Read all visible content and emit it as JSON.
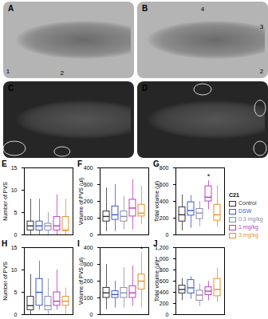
{
  "image_panels": [
    {
      "label": "A",
      "markers": [
        "1",
        "2"
      ]
    },
    {
      "label": "B",
      "markers": [
        "4",
        "3",
        "2"
      ]
    },
    {
      "label": "C",
      "markers": []
    },
    {
      "label": "D",
      "markers": []
    }
  ],
  "legend_title": "C21",
  "chart_data": [
    {
      "type": "box",
      "title": "E",
      "y_label": "Number of PVS",
      "categories": [
        "Control",
        "DSW",
        "0.3 mg/kg",
        "1 mg/kg",
        "3 mg/kg"
      ],
      "colors": [
        "#333333",
        "#3b5bdb",
        "#8c8ca8",
        "#c03cc0",
        "#e8902a"
      ],
      "boxes": [
        {
          "min": 0,
          "q1": 1,
          "median": 2,
          "q3": 3,
          "max": 8
        },
        {
          "min": 0,
          "q1": 1,
          "median": 2,
          "q3": 3,
          "max": 8
        },
        {
          "min": 0,
          "q1": 1,
          "median": 2,
          "q3": 2.5,
          "max": 5
        },
        {
          "min": 0,
          "q1": 1,
          "median": 2,
          "q3": 4,
          "max": 9
        },
        {
          "min": 0,
          "q1": 1,
          "median": 1,
          "q3": 4,
          "max": 8
        }
      ],
      "ylim": [
        0,
        15
      ],
      "yticks": [
        0,
        5,
        10,
        15
      ],
      "tick_labels": "y",
      "annotations": []
    },
    {
      "type": "box",
      "title": "F",
      "y_label": "Volume of PVS (µl)",
      "categories": [
        "Control",
        "DSW",
        "0.3 mg/kg",
        "1 mg/kg",
        "3 mg/kg"
      ],
      "colors": [
        "#333333",
        "#3b5bdb",
        "#8c8ca8",
        "#c03cc0",
        "#e8902a"
      ],
      "boxes": [
        {
          "min": 20,
          "q1": 80,
          "median": 110,
          "q3": 140,
          "max": 280
        },
        {
          "min": 20,
          "q1": 90,
          "median": 120,
          "q3": 170,
          "max": 300
        },
        {
          "min": 30,
          "q1": 80,
          "median": 110,
          "q3": 140,
          "max": 230
        },
        {
          "min": 30,
          "q1": 110,
          "median": 160,
          "q3": 210,
          "max": 330
        },
        {
          "min": 60,
          "q1": 110,
          "median": 130,
          "q3": 180,
          "max": 290
        }
      ],
      "ylim": [
        0,
        400
      ],
      "yticks": [
        0,
        100,
        200,
        300,
        400
      ],
      "tick_labels": "y",
      "annotations": []
    },
    {
      "type": "box",
      "title": "G",
      "y_label": "Total volume (µl)",
      "categories": [
        "Control",
        "DSW",
        "0.3 mg/kg",
        "1 mg/kg",
        "3 mg/kg"
      ],
      "colors": [
        "#333333",
        "#3b5bdb",
        "#8c8ca8",
        "#c03cc0",
        "#e8902a"
      ],
      "boxes": [
        {
          "min": 50,
          "q1": 160,
          "median": 240,
          "q3": 330,
          "max": 480
        },
        {
          "min": 80,
          "q1": 230,
          "median": 290,
          "q3": 390,
          "max": 470
        },
        {
          "min": 100,
          "q1": 190,
          "median": 260,
          "q3": 310,
          "max": 400
        },
        {
          "min": 300,
          "q1": 400,
          "median": 450,
          "q3": 580,
          "max": 650
        },
        {
          "min": 90,
          "q1": 170,
          "median": 240,
          "q3": 360,
          "max": 590
        }
      ],
      "ylim": [
        0,
        800
      ],
      "yticks": [
        0,
        200,
        400,
        600,
        800
      ],
      "tick_labels": "y",
      "annotations": [
        {
          "category": "1 mg/kg",
          "text": "*"
        }
      ]
    },
    {
      "type": "box",
      "title": "H",
      "y_label": "Number of PVS",
      "categories": [
        "Control",
        "DSW",
        "0.3 mg/kg",
        "1 mg/kg",
        "3 mg/kg"
      ],
      "colors": [
        "#333333",
        "#3b5bdb",
        "#8c8ca8",
        "#c03cc0",
        "#e8902a"
      ],
      "boxes": [
        {
          "min": 0,
          "q1": 1,
          "median": 2,
          "q3": 4,
          "max": 9
        },
        {
          "min": 1,
          "q1": 2,
          "median": 5,
          "q3": 8,
          "max": 12
        },
        {
          "min": 0,
          "q1": 1,
          "median": 2,
          "q3": 4,
          "max": 8
        },
        {
          "min": 1,
          "q1": 2,
          "median": 3,
          "q3": 5,
          "max": 10
        },
        {
          "min": 0,
          "q1": 2,
          "median": 3,
          "q3": 4,
          "max": 6
        }
      ],
      "ylim": [
        0,
        15
      ],
      "yticks": [
        0,
        5,
        10,
        15
      ],
      "tick_labels": "y",
      "annotations": []
    },
    {
      "type": "box",
      "title": "I",
      "y_label": "Volume of PVS (µl)",
      "categories": [
        "Control",
        "DSW",
        "0.3 mg/kg",
        "1 mg/kg",
        "3 mg/kg"
      ],
      "colors": [
        "#333333",
        "#3b5bdb",
        "#8c8ca8",
        "#c03cc0",
        "#e8902a"
      ],
      "boxes": [
        {
          "min": 30,
          "q1": 100,
          "median": 130,
          "q3": 160,
          "max": 300
        },
        {
          "min": 40,
          "q1": 100,
          "median": 120,
          "q3": 140,
          "max": 200
        },
        {
          "min": 40,
          "q1": 100,
          "median": 130,
          "q3": 160,
          "max": 280
        },
        {
          "min": 50,
          "q1": 100,
          "median": 130,
          "q3": 170,
          "max": 290
        },
        {
          "min": 40,
          "q1": 150,
          "median": 200,
          "q3": 240,
          "max": 370
        }
      ],
      "ylim": [
        0,
        400
      ],
      "yticks": [
        0,
        100,
        200,
        300,
        400
      ],
      "tick_labels": "y",
      "annotations": [
        {
          "category": "3 mg/kg",
          "text": "*"
        }
      ]
    },
    {
      "type": "box",
      "title": "J",
      "y_label": "Total volume (µl)",
      "categories": [
        "Control",
        "DSW",
        "0.3 mg/kg",
        "1 mg/kg",
        "3 mg/kg"
      ],
      "colors": [
        "#333333",
        "#3b5bdb",
        "#8c8ca8",
        "#c03cc0",
        "#e8902a"
      ],
      "boxes": [
        {
          "min": 250,
          "q1": 380,
          "median": 450,
          "q3": 520,
          "max": 650
        },
        {
          "min": 280,
          "q1": 380,
          "median": 480,
          "q3": 620,
          "max": 680
        },
        {
          "min": 150,
          "q1": 250,
          "median": 350,
          "q3": 430,
          "max": 550
        },
        {
          "min": 250,
          "q1": 350,
          "median": 420,
          "q3": 490,
          "max": 600
        },
        {
          "min": 220,
          "q1": 330,
          "median": 450,
          "q3": 640,
          "max": 830
        }
      ],
      "ylim": [
        0,
        1200
      ],
      "yticks": [
        0,
        200,
        400,
        600,
        800,
        1000,
        1200
      ],
      "tick_labels": "y",
      "annotations": []
    }
  ]
}
